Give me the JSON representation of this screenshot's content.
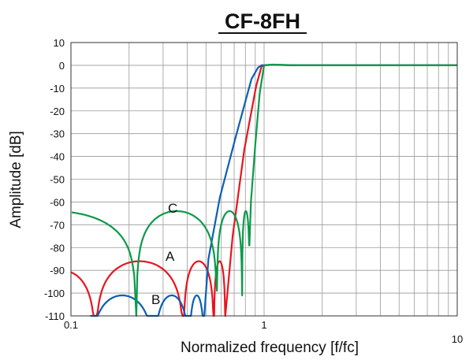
{
  "chart_data": {
    "type": "line",
    "title": "CF-8FH",
    "xlabel": "Normalized frequency [f/fc]",
    "ylabel": "Amplitude [dB]",
    "xscale": "log",
    "xlim": [
      0.1,
      10
    ],
    "ylim": [
      -110,
      10
    ],
    "grid": true,
    "x_tick_labels": [
      "0.1",
      "1",
      "10"
    ],
    "y_ticks": [
      10,
      0,
      -10,
      -20,
      -30,
      -40,
      -50,
      -60,
      -70,
      -80,
      -90,
      -100,
      -110
    ],
    "series": [
      {
        "name": "A",
        "color": "#e8141e",
        "lobes": [
          {
            "f1": 0.06,
            "f2": 0.134,
            "peak": -90,
            "d1": -110,
            "d2": -110
          },
          {
            "f1": 0.134,
            "f2": 0.383,
            "peak": -86,
            "d1": -110,
            "d2": -110
          },
          {
            "f1": 0.383,
            "f2": 0.55,
            "peak": -86,
            "d1": -110,
            "d2": -110
          },
          {
            "f1": 0.55,
            "f2": 0.63,
            "peak": -86,
            "d1": -110,
            "d2": -110
          }
        ],
        "points": [
          [
            0.63,
            -110
          ],
          [
            0.687,
            -75
          ],
          [
            0.79,
            -37
          ],
          [
            0.91,
            -9
          ],
          [
            0.97,
            -0.5
          ],
          [
            1.0,
            0
          ],
          [
            1.1,
            0.2
          ],
          [
            1.5,
            0
          ],
          [
            10,
            0
          ]
        ]
      },
      {
        "name": "B",
        "color": "#0a5fb4",
        "lobes": [
          {
            "f1": 0.126,
            "f2": 0.27,
            "peak": -101,
            "d1": -110,
            "d2": -110
          },
          {
            "f1": 0.27,
            "f2": 0.41,
            "peak": -101,
            "d1": -110,
            "d2": -110
          },
          {
            "f1": 0.41,
            "f2": 0.49,
            "peak": -101,
            "d1": -110,
            "d2": -110
          }
        ],
        "points": [
          [
            0.49,
            -110
          ],
          [
            0.515,
            -85
          ],
          [
            0.59,
            -58
          ],
          [
            0.71,
            -32
          ],
          [
            0.86,
            -6
          ],
          [
            0.93,
            -1
          ],
          [
            0.97,
            0
          ],
          [
            1.1,
            0.2
          ],
          [
            1.5,
            0
          ],
          [
            10,
            0
          ]
        ]
      },
      {
        "name": "C",
        "color": "#0a9a4a",
        "lobes": [
          {
            "f1": 0.03,
            "f2": 0.218,
            "peak": -64,
            "d1": -110,
            "d2": -110
          },
          {
            "f1": 0.218,
            "f2": 0.57,
            "peak": -64,
            "d1": -110,
            "d2": -99
          },
          {
            "f1": 0.57,
            "f2": 0.77,
            "peak": -64,
            "d1": -99,
            "d2": -101
          },
          {
            "f1": 0.77,
            "f2": 0.84,
            "peak": -64,
            "d1": -101,
            "d2": -79
          }
        ],
        "points": [
          [
            0.84,
            -79
          ],
          [
            0.855,
            -60
          ],
          [
            0.9,
            -35
          ],
          [
            0.95,
            -12
          ],
          [
            1.0,
            0
          ],
          [
            1.1,
            0.3
          ],
          [
            1.5,
            0
          ],
          [
            10,
            0
          ]
        ]
      }
    ],
    "annotations": [
      "A",
      "B",
      "C"
    ]
  }
}
